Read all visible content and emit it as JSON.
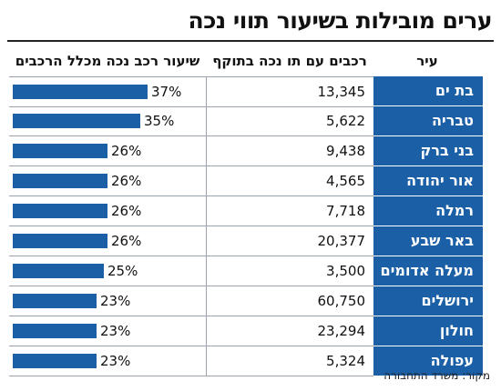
{
  "title": "ערים מובילות בשיעור תווי נכה",
  "source": "מקור: משרד התחבורה",
  "columns": {
    "city": "עיר",
    "cars": "רכבים עם תו נכה בתוקף",
    "rate": "שיעור רכב נכה מכלל הרכבים"
  },
  "colors": {
    "bar": "#1b5fa6",
    "city_cell": "#1b5fa6"
  },
  "chart_data": {
    "type": "bar",
    "orientation": "horizontal",
    "categories": [
      "בת ים",
      "טבריה",
      "בני ברק",
      "אור יהודה",
      "רמלה",
      "באר שבע",
      "מעלה אדומים",
      "ירושלים",
      "חולון",
      "עפולה"
    ],
    "values": [
      37,
      35,
      26,
      26,
      26,
      26,
      25,
      23,
      23,
      23
    ],
    "value_labels": [
      "37%",
      "35%",
      "26%",
      "26%",
      "26%",
      "26%",
      "25%",
      "23%",
      "23%",
      "23%"
    ],
    "cars": [
      "13,345",
      "5,622",
      "9,438",
      "4,565",
      "7,718",
      "20,377",
      "3,500",
      "60,750",
      "23,294",
      "5,324"
    ],
    "xlim": [
      0,
      50
    ],
    "grid": false,
    "legend": "none"
  }
}
